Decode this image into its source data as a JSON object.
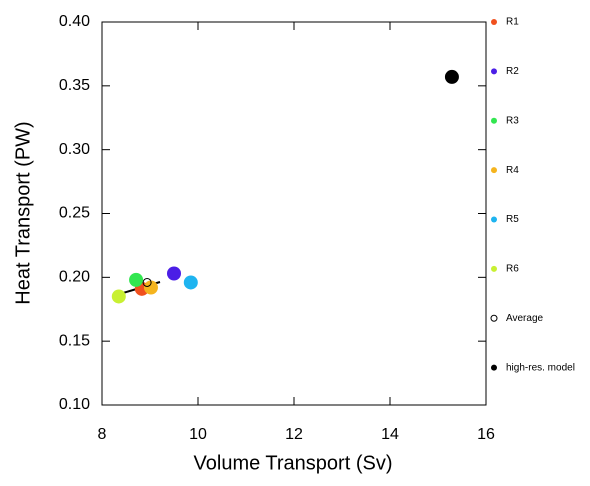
{
  "chart_data": {
    "type": "scatter",
    "x_label": "Volume Transport (Sv)",
    "y_label": "Heat Transport (PW)",
    "xlim": [
      8,
      16
    ],
    "xticks": [
      8,
      10,
      12,
      14,
      16
    ],
    "ylim": [
      0.1,
      0.4
    ],
    "yticks": [
      {
        "value": 0.1,
        "label": "0.10"
      },
      {
        "value": 0.15,
        "label": "0.15"
      },
      {
        "value": 0.2,
        "label": "0.20"
      },
      {
        "value": 0.25,
        "label": "0.25"
      },
      {
        "value": 0.3,
        "label": "0.30"
      },
      {
        "value": 0.35,
        "label": "0.35"
      },
      {
        "value": 0.4,
        "label": "0.40"
      }
    ],
    "legend": "right",
    "series": [
      {
        "name": "R1",
        "color": "#f0501e",
        "x": [
          8.83
        ],
        "y": [
          0.191
        ]
      },
      {
        "name": "R2",
        "color": "#4b1ee6",
        "x": [
          9.5
        ],
        "y": [
          0.203
        ]
      },
      {
        "name": "R3",
        "color": "#32e650",
        "x": [
          8.71
        ],
        "y": [
          0.198
        ]
      },
      {
        "name": "R4",
        "color": "#f5b41e",
        "x": [
          9.02
        ],
        "y": [
          0.192
        ]
      },
      {
        "name": "R5",
        "color": "#1eb4f0",
        "x": [
          9.85
        ],
        "y": [
          0.196
        ]
      },
      {
        "name": "R6",
        "color": "#c8f032",
        "x": [
          8.35
        ],
        "y": [
          0.185
        ]
      },
      {
        "name": "Average",
        "color": "#000000",
        "marker": "open",
        "x": [
          8.94
        ],
        "y": [
          0.196
        ]
      },
      {
        "name": "high-res. model",
        "color": "#000000",
        "x": [
          15.29
        ],
        "y": [
          0.357
        ]
      }
    ]
  }
}
